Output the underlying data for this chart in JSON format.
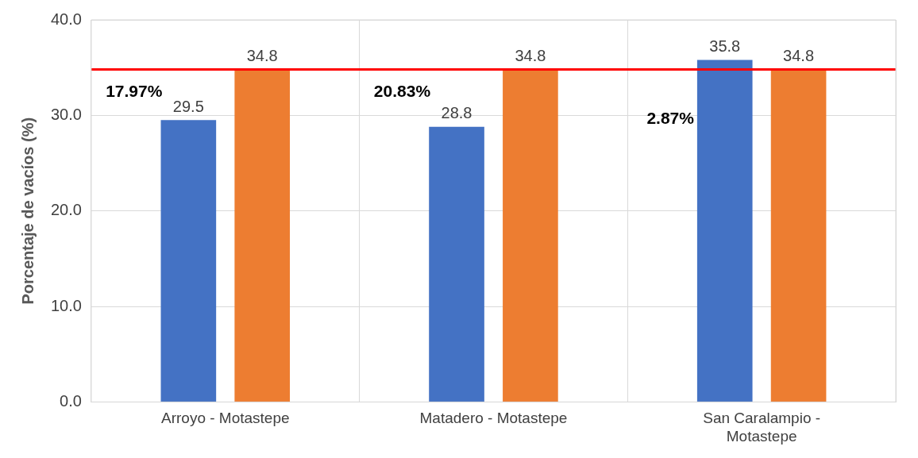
{
  "chart_data": {
    "type": "bar",
    "ylabel": "Porcentaje de vacíos (%)",
    "categories": [
      "Arroyo - Motastepe",
      "Matadero - Motastepe",
      "San Caralampio - Motastepe"
    ],
    "series": [
      {
        "color": "#4472c4",
        "values": [
          29.5,
          28.8,
          35.8
        ]
      },
      {
        "color": "#ed7d31",
        "values": [
          34.8,
          34.8,
          34.8
        ]
      }
    ],
    "ylim": [
      0,
      40
    ],
    "yticks": [
      {
        "value": 0,
        "label": "0.0"
      },
      {
        "value": 10,
        "label": "10.0"
      },
      {
        "value": 20,
        "label": "20.0"
      },
      {
        "value": 30,
        "label": "30.0"
      },
      {
        "value": 40,
        "label": "40.0"
      }
    ],
    "grid": true,
    "data_labels": true,
    "ref_lines": [
      {
        "axis": "y",
        "value": 34.8,
        "color": "#ff0000"
      }
    ],
    "annotations": [
      "17.97%",
      "20.83%",
      "2.87%"
    ]
  }
}
